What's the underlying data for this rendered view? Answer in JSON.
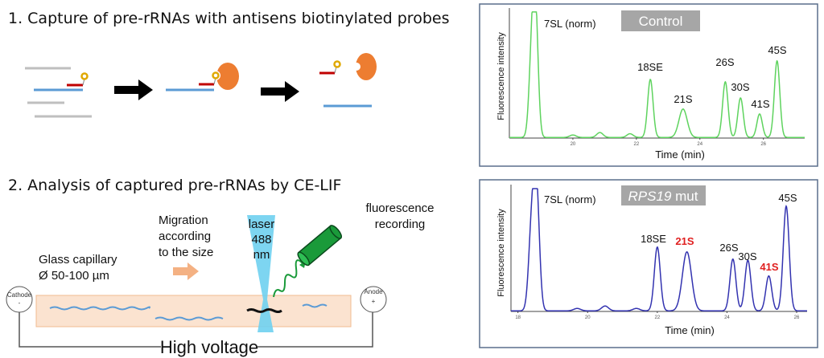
{
  "panel1": {
    "title": "1. Capture of pre-rRNAs with antisens biotinylated probes"
  },
  "panel2": {
    "title": "2. Analysis of captured pre-rRNAs by CE-LIF",
    "capillary_label": [
      "Glass capillary",
      "Ø 50-100 µm"
    ],
    "migration_label": [
      "Migration",
      "according",
      "to the size"
    ],
    "laser_label": [
      "laser",
      "488",
      "nm"
    ],
    "detector_label": [
      "fluorescence",
      "recording"
    ],
    "cathode": {
      "label": "Cathode",
      "sign": "-"
    },
    "anode": {
      "label": "Anode",
      "sign": "+"
    },
    "voltage_label": "High voltage"
  },
  "colors": {
    "rna_target": "#5b9bd5",
    "rna_other": "#bfbfbf",
    "probe": "#c00000",
    "biotin": "#e0a800",
    "streptavidin": "#ed7d31",
    "capillary": "#fbe3d0",
    "laser": "#6fd0f0",
    "detector": "#1a9a3a",
    "control_trace": "#5ed35e",
    "mutant_trace": "#3333b0",
    "highlight": "#e02020"
  },
  "chart_data": [
    {
      "type": "line",
      "badge": "Control",
      "xlabel": "Time (min)",
      "ylabel": "Fluorescence intensity",
      "xlim": [
        18.0,
        27.3
      ],
      "xticks": [
        "20",
        "22",
        "24",
        "26"
      ],
      "grid": false,
      "peaks": [
        {
          "label": "",
          "time": 18.7,
          "relative_intensity": 0.58
        },
        {
          "label": "7SL (norm)",
          "time": 18.82,
          "relative_intensity": 1.0
        },
        {
          "label": "",
          "time": 20.0,
          "relative_intensity": 0.02
        },
        {
          "label": "",
          "time": 20.85,
          "relative_intensity": 0.04
        },
        {
          "label": "",
          "time": 21.8,
          "relative_intensity": 0.03
        },
        {
          "label": "18SE",
          "time": 22.44,
          "relative_intensity": 0.47
        },
        {
          "label": "21S",
          "time": 23.47,
          "relative_intensity": 0.23
        },
        {
          "label": "26S",
          "time": 24.8,
          "relative_intensity": 0.45
        },
        {
          "label": "30S",
          "time": 25.28,
          "relative_intensity": 0.32
        },
        {
          "label": "41S",
          "time": 25.88,
          "relative_intensity": 0.19
        },
        {
          "label": "45S",
          "time": 26.43,
          "relative_intensity": 0.62
        }
      ]
    },
    {
      "type": "line",
      "badge_italic": "RPS19",
      "badge": " mut",
      "xlabel": "Time (min)",
      "ylabel": "Fluorescence intensity",
      "xlim": [
        17.8,
        26.3
      ],
      "xticks": [
        "18",
        "20",
        "22",
        "24",
        "26"
      ],
      "grid": false,
      "highlighted_peaks": [
        "21S",
        "41S"
      ],
      "peaks": [
        {
          "label": "",
          "time": 18.39,
          "relative_intensity": 0.64
        },
        {
          "label": "7SL (norm)",
          "time": 18.53,
          "relative_intensity": 1.0
        },
        {
          "label": "",
          "time": 19.7,
          "relative_intensity": 0.02
        },
        {
          "label": "",
          "time": 20.5,
          "relative_intensity": 0.04
        },
        {
          "label": "",
          "time": 21.4,
          "relative_intensity": 0.02
        },
        {
          "label": "18SE",
          "time": 22.0,
          "relative_intensity": 0.53
        },
        {
          "label": "21S",
          "time": 22.85,
          "relative_intensity": 0.49
        },
        {
          "label": "26S",
          "time": 24.17,
          "relative_intensity": 0.43
        },
        {
          "label": "30S",
          "time": 24.6,
          "relative_intensity": 0.42
        },
        {
          "label": "41S",
          "time": 25.2,
          "relative_intensity": 0.29
        },
        {
          "label": "45S",
          "time": 25.7,
          "relative_intensity": 0.87
        }
      ]
    }
  ]
}
